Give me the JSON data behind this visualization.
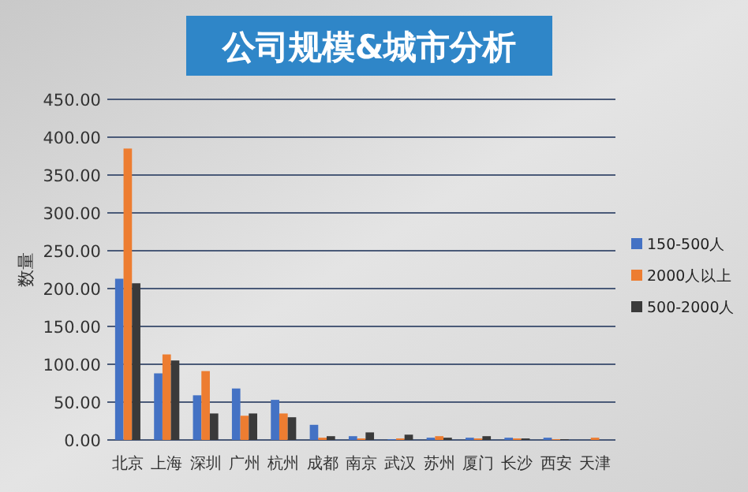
{
  "chart_data": {
    "type": "bar",
    "title": "公司规模&城市分析",
    "ylabel": "数量",
    "categories": [
      "北京",
      "上海",
      "深圳",
      "广州",
      "杭州",
      "成都",
      "南京",
      "武汉",
      "苏州",
      "厦门",
      "长沙",
      "西安",
      "天津"
    ],
    "series": [
      {
        "name": "150-500人",
        "color": "#4472c4",
        "values": [
          213,
          88,
          59,
          68,
          53,
          20,
          5,
          1,
          3,
          3,
          3,
          3,
          0
        ]
      },
      {
        "name": "2000人以上",
        "color": "#ed7d31",
        "values": [
          385,
          113,
          91,
          32,
          35,
          3,
          2,
          2,
          5,
          2,
          2,
          1,
          3
        ]
      },
      {
        "name": "500-2000人",
        "color": "#3a3a3a",
        "values": [
          207,
          105,
          35,
          35,
          30,
          5,
          10,
          7,
          3,
          5,
          2,
          1,
          0
        ]
      }
    ],
    "ylim": [
      0,
      450
    ],
    "yticks": [
      {
        "value": 0,
        "label": "0.00"
      },
      {
        "value": 50,
        "label": "50.00"
      },
      {
        "value": 100,
        "label": "100.00"
      },
      {
        "value": 150,
        "label": "150.00"
      },
      {
        "value": 200,
        "label": "200.00"
      },
      {
        "value": 250,
        "label": "250.00"
      },
      {
        "value": 300,
        "label": "300.00"
      },
      {
        "value": 350,
        "label": "350.00"
      },
      {
        "value": 400,
        "label": "400.00"
      },
      {
        "value": 450,
        "label": "450.00"
      }
    ],
    "grid": "y",
    "legend": "right"
  }
}
